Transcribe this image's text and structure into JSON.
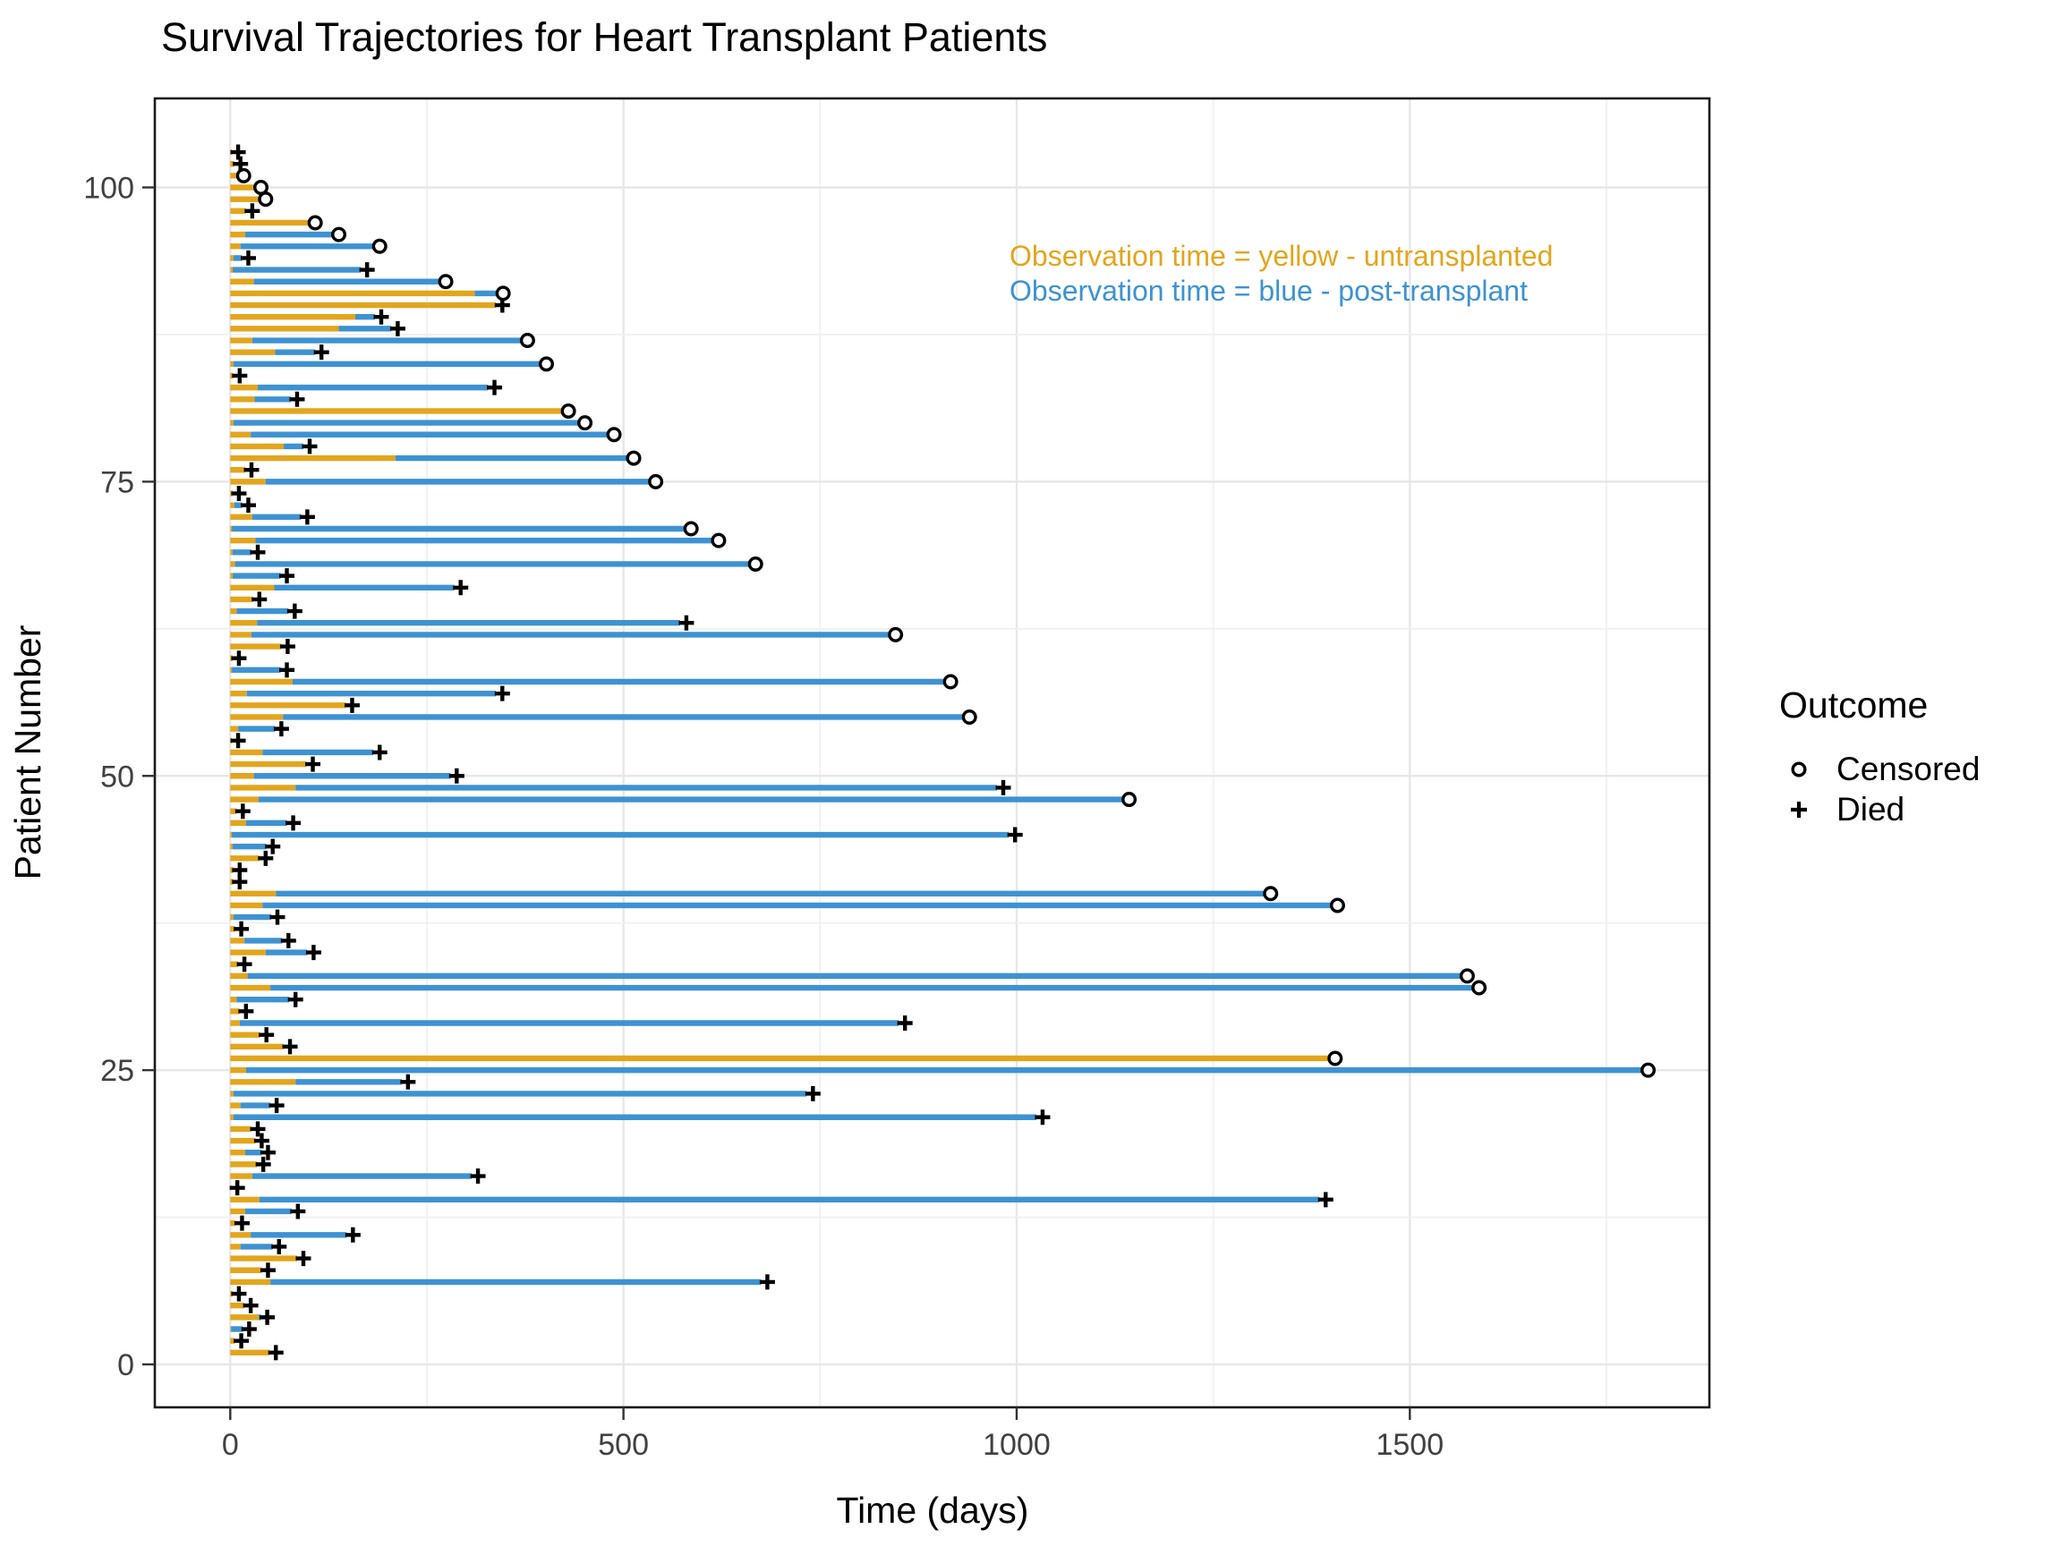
{
  "title": "Survival Trajectories for Heart Transplant Patients",
  "axes": {
    "x": {
      "label": "Time (days)",
      "ticks": [
        0,
        500,
        1000,
        1500
      ],
      "minor_gridlines": [
        250,
        750,
        1250,
        1750
      ],
      "range_days": [
        -96,
        1881
      ]
    },
    "y": {
      "label": "Patient Number",
      "ticks": [
        0,
        25,
        50,
        75,
        100
      ],
      "minor_gridlines": [
        12.5,
        37.5,
        62.5,
        87.5
      ],
      "range_patients": [
        -3.6,
        107.6
      ]
    }
  },
  "annotation": {
    "lines": [
      {
        "text": "Observation time = yellow - untransplanted",
        "color": "#E2A51D"
      },
      {
        "text": "Observation time = blue - post-transplant",
        "color": "#3E92D2"
      }
    ]
  },
  "legend": {
    "title": "Outcome",
    "items": [
      {
        "label": "Censored",
        "marker": "circle"
      },
      {
        "label": "Died",
        "marker": "plus"
      }
    ]
  },
  "colors": {
    "untransplanted_bar": "#E2A51D",
    "posttransplant_bar": "#3E92D2",
    "marker": "#000000",
    "grid_major": "#E7E7E7",
    "grid_minor": "#F0F0F0",
    "panel_border": "#1a1a1a",
    "tick_label": "#404040",
    "panel_background": "#ffffff"
  },
  "chart_data": {
    "type": "bar",
    "orientation": "horizontal",
    "title": "Survival Trajectories for Heart Transplant Patients",
    "xlabel": "Time (days)",
    "ylabel": "Patient Number",
    "xlim": [
      -96,
      1881
    ],
    "ylim": [
      -3.6,
      107.6
    ],
    "grid": true,
    "legend_position": "right",
    "description": "Each row is one patient: a gold segment from day 0 for untransplanted observation time (wait time), then a blue segment after transplant until end of follow-up. End marker: open circle = censored, plus = died.",
    "patient_fields": [
      "patient_number",
      "wait_days_untransplanted_or_null",
      "total_observation_days",
      "outcome"
    ],
    "patients": [
      [
        1,
        null,
        50,
        "died"
      ],
      [
        2,
        null,
        6,
        "died"
      ],
      [
        3,
        1,
        16,
        "died"
      ],
      [
        4,
        36,
        39,
        "died"
      ],
      [
        5,
        null,
        18,
        "died"
      ],
      [
        6,
        null,
        3,
        "died"
      ],
      [
        7,
        51,
        675,
        "died"
      ],
      [
        8,
        null,
        40,
        "died"
      ],
      [
        9,
        null,
        85,
        "died"
      ],
      [
        10,
        13,
        54,
        "died"
      ],
      [
        11,
        26,
        148,
        "died"
      ],
      [
        12,
        null,
        7,
        "died"
      ],
      [
        13,
        19,
        78,
        "died"
      ],
      [
        14,
        37,
        1385,
        "died"
      ],
      [
        15,
        null,
        1,
        "died"
      ],
      [
        16,
        28,
        307,
        "died"
      ],
      [
        17,
        null,
        34,
        "died"
      ],
      [
        18,
        19,
        40,
        "died"
      ],
      [
        19,
        null,
        32,
        "died"
      ],
      [
        20,
        null,
        27,
        "died"
      ],
      [
        21,
        4,
        1025,
        "died"
      ],
      [
        22,
        13,
        51,
        "died"
      ],
      [
        23,
        4,
        733,
        "died"
      ],
      [
        24,
        83,
        218,
        "died"
      ],
      [
        25,
        20,
        1795,
        "censored"
      ],
      [
        26,
        null,
        1397,
        "censored"
      ],
      [
        27,
        null,
        68,
        "died"
      ],
      [
        28,
        null,
        38,
        "died"
      ],
      [
        29,
        12,
        850,
        "died"
      ],
      [
        30,
        null,
        12,
        "died"
      ],
      [
        31,
        8,
        75,
        "died"
      ],
      [
        32,
        51,
        1580,
        "censored"
      ],
      [
        33,
        22,
        1565,
        "censored"
      ],
      [
        34,
        null,
        10,
        "died"
      ],
      [
        35,
        45,
        98,
        "died"
      ],
      [
        36,
        18,
        66,
        "died"
      ],
      [
        37,
        null,
        6,
        "died"
      ],
      [
        38,
        4,
        52,
        "died"
      ],
      [
        39,
        41,
        1400,
        "censored"
      ],
      [
        40,
        58,
        1315,
        "censored"
      ],
      [
        41,
        null,
        4,
        "died"
      ],
      [
        42,
        null,
        4,
        "died"
      ],
      [
        43,
        null,
        37,
        "died"
      ],
      [
        44,
        3,
        46,
        "died"
      ],
      [
        45,
        2,
        990,
        "died"
      ],
      [
        46,
        20,
        72,
        "died"
      ],
      [
        47,
        null,
        8,
        "died"
      ],
      [
        48,
        36,
        1135,
        "censored"
      ],
      [
        49,
        83,
        975,
        "died"
      ],
      [
        50,
        30,
        280,
        "died"
      ],
      [
        51,
        null,
        97,
        "died"
      ],
      [
        52,
        41,
        182,
        "died"
      ],
      [
        53,
        null,
        2,
        "died"
      ],
      [
        54,
        10,
        57,
        "died"
      ],
      [
        55,
        67,
        932,
        "censored"
      ],
      [
        56,
        null,
        147,
        "died"
      ],
      [
        57,
        21,
        338,
        "died"
      ],
      [
        58,
        79,
        908,
        "censored"
      ],
      [
        59,
        2,
        64,
        "died"
      ],
      [
        60,
        null,
        3,
        "died"
      ],
      [
        61,
        null,
        65,
        "died"
      ],
      [
        62,
        27,
        838,
        "censored"
      ],
      [
        63,
        34,
        572,
        "died"
      ],
      [
        64,
        8,
        74,
        "died"
      ],
      [
        65,
        null,
        29,
        "died"
      ],
      [
        66,
        56,
        285,
        "died"
      ],
      [
        67,
        3,
        64,
        "died"
      ],
      [
        68,
        6,
        660,
        "censored"
      ],
      [
        69,
        3,
        27,
        "died"
      ],
      [
        70,
        32,
        613,
        "censored"
      ],
      [
        71,
        2,
        578,
        "censored"
      ],
      [
        72,
        28,
        90,
        "died"
      ],
      [
        73,
        5,
        15,
        "died"
      ],
      [
        74,
        null,
        3,
        "died"
      ],
      [
        75,
        45,
        533,
        "censored"
      ],
      [
        76,
        null,
        19,
        "died"
      ],
      [
        77,
        210,
        505,
        "censored"
      ],
      [
        78,
        68,
        93,
        "died"
      ],
      [
        79,
        26,
        480,
        "censored"
      ],
      [
        80,
        4,
        443,
        "censored"
      ],
      [
        81,
        null,
        422,
        "censored"
      ],
      [
        82,
        31,
        77,
        "died"
      ],
      [
        83,
        35,
        328,
        "died"
      ],
      [
        84,
        null,
        4,
        "died"
      ],
      [
        85,
        4,
        394,
        "censored"
      ],
      [
        86,
        57,
        108,
        "died"
      ],
      [
        87,
        28,
        370,
        "censored"
      ],
      [
        88,
        138,
        205,
        "died"
      ],
      [
        89,
        159,
        184,
        "died"
      ],
      [
        90,
        null,
        338,
        "died"
      ],
      [
        91,
        311,
        339,
        "censored"
      ],
      [
        92,
        30,
        266,
        "censored"
      ],
      [
        93,
        3,
        166,
        "died"
      ],
      [
        94,
        4,
        15,
        "died"
      ],
      [
        95,
        13,
        182,
        "censored"
      ],
      [
        96,
        19,
        130,
        "censored"
      ],
      [
        97,
        null,
        100,
        "censored"
      ],
      [
        98,
        null,
        20,
        "died"
      ],
      [
        99,
        null,
        37,
        "censored"
      ],
      [
        100,
        null,
        31,
        "censored"
      ],
      [
        101,
        null,
        9,
        "censored"
      ],
      [
        102,
        null,
        5,
        "died"
      ],
      [
        103,
        null,
        2,
        "died"
      ]
    ]
  }
}
